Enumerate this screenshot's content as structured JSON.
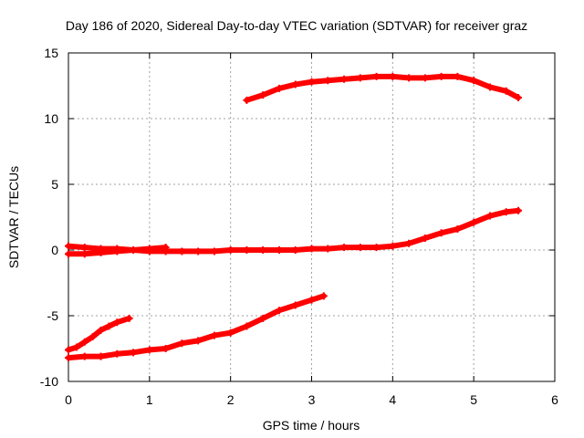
{
  "chart_data": {
    "type": "scatter",
    "title": "Day 186 of 2020, Sidereal Day-to-day VTEC variation (SDTVAR) for receiver graz",
    "xlabel": "GPS time / hours",
    "ylabel": "SDTVAR / TECUs",
    "xlim": [
      0,
      6
    ],
    "ylim": [
      -10,
      15
    ],
    "x_ticks": [
      "0",
      "1",
      "2",
      "3",
      "4",
      "5",
      "6"
    ],
    "y_ticks": [
      "-10",
      "-5",
      "0",
      "5",
      "10",
      "15"
    ],
    "grid": true,
    "legend": "none",
    "color": "#ff0000",
    "series": [
      {
        "x": [
          2.2,
          2.4,
          2.6,
          2.8,
          3.0,
          3.2,
          3.4,
          3.6,
          3.8,
          4.0,
          4.2,
          4.4,
          4.6,
          4.8,
          5.0,
          5.2,
          5.4,
          5.55
        ],
        "values": [
          11.4,
          11.8,
          12.3,
          12.6,
          12.8,
          12.9,
          13.0,
          13.1,
          13.2,
          13.2,
          13.1,
          13.1,
          13.2,
          13.2,
          12.9,
          12.4,
          12.1,
          11.6
        ]
      },
      {
        "x": [
          0.0,
          0.2,
          0.4,
          0.6,
          0.8,
          1.0,
          1.2,
          1.4,
          1.6,
          1.8,
          2.0,
          2.2,
          2.4,
          2.6,
          2.8,
          3.0,
          3.2,
          3.4,
          3.6,
          3.8,
          4.0,
          4.2,
          4.4,
          4.6,
          4.8,
          5.0,
          5.2,
          5.4,
          5.55
        ],
        "values": [
          0.3,
          0.2,
          0.1,
          0.1,
          0.0,
          -0.1,
          -0.1,
          -0.1,
          -0.1,
          -0.1,
          0.0,
          0.0,
          0.0,
          0.0,
          0.0,
          0.1,
          0.1,
          0.2,
          0.2,
          0.2,
          0.3,
          0.5,
          0.9,
          1.3,
          1.6,
          2.1,
          2.6,
          2.9,
          3.0
        ]
      },
      {
        "x": [
          0.0,
          0.2,
          0.4,
          0.6,
          0.8,
          1.0,
          1.2
        ],
        "values": [
          -0.3,
          -0.3,
          -0.2,
          -0.1,
          0.0,
          0.1,
          0.2
        ]
      },
      {
        "x": [
          0.0,
          0.1,
          0.2,
          0.3,
          0.4,
          0.5,
          0.6,
          0.75
        ],
        "values": [
          -7.6,
          -7.4,
          -7.0,
          -6.6,
          -6.1,
          -5.8,
          -5.5,
          -5.2
        ]
      },
      {
        "x": [
          0.0,
          0.2,
          0.4,
          0.6,
          0.8,
          1.0,
          1.2,
          1.4,
          1.6,
          1.8,
          2.0,
          2.2,
          2.4,
          2.6,
          2.8,
          3.0,
          3.15
        ],
        "values": [
          -8.2,
          -8.1,
          -8.1,
          -7.9,
          -7.8,
          -7.6,
          -7.5,
          -7.1,
          -6.9,
          -6.5,
          -6.3,
          -5.8,
          -5.2,
          -4.6,
          -4.2,
          -3.8,
          -3.5
        ]
      }
    ]
  }
}
